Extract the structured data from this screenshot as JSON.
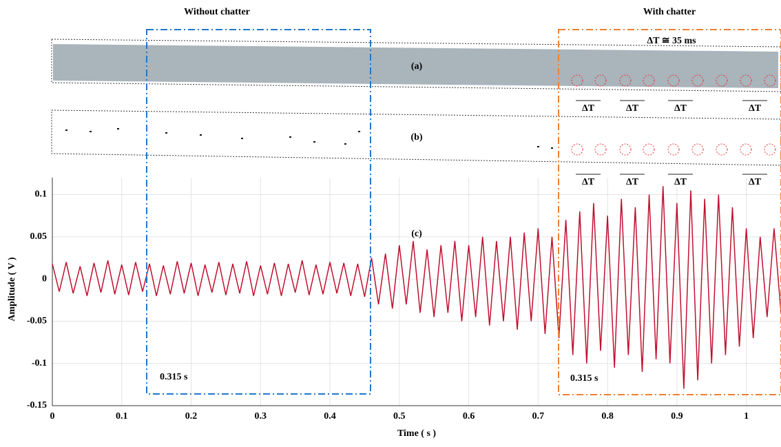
{
  "chart_data": {
    "type": "line",
    "xlabel": "Time ( s )",
    "ylabel": "Amplitude ( V )",
    "xlim": [
      0,
      1.05
    ],
    "xticks": [
      0,
      0.1,
      0.2,
      0.3,
      0.4,
      0.5,
      0.6,
      0.7,
      0.8,
      0.9,
      1
    ],
    "ylim": [
      -0.15,
      0.12
    ],
    "yticks": [
      -0.15,
      -0.1,
      -0.05,
      0,
      0.05,
      0.1
    ],
    "grid": true,
    "x": [
      0,
      0.01,
      0.02,
      0.03,
      0.04,
      0.05,
      0.06,
      0.07,
      0.08,
      0.09,
      0.1,
      0.11,
      0.12,
      0.13,
      0.14,
      0.15,
      0.16,
      0.17,
      0.18,
      0.19,
      0.2,
      0.21,
      0.22,
      0.23,
      0.24,
      0.25,
      0.26,
      0.27,
      0.28,
      0.29,
      0.3,
      0.31,
      0.32,
      0.33,
      0.34,
      0.35,
      0.36,
      0.37,
      0.38,
      0.39,
      0.4,
      0.41,
      0.42,
      0.43,
      0.44,
      0.45,
      0.46,
      0.47,
      0.48,
      0.49,
      0.5,
      0.51,
      0.52,
      0.53,
      0.54,
      0.55,
      0.56,
      0.57,
      0.58,
      0.59,
      0.6,
      0.61,
      0.62,
      0.63,
      0.64,
      0.65,
      0.66,
      0.67,
      0.68,
      0.69,
      0.7,
      0.71,
      0.72,
      0.73,
      0.74,
      0.75,
      0.76,
      0.77,
      0.78,
      0.79,
      0.8,
      0.81,
      0.82,
      0.83,
      0.84,
      0.85,
      0.86,
      0.87,
      0.88,
      0.89,
      0.9,
      0.91,
      0.92,
      0.93,
      0.94,
      0.95,
      0.96,
      0.97,
      0.98,
      0.99,
      1,
      1.01,
      1.02,
      1.03,
      1.04,
      1.05
    ],
    "series": [
      {
        "color": "#c0102e",
        "values": [
          0.018,
          -0.015,
          0.02,
          -0.017,
          0.015,
          -0.02,
          0.019,
          -0.016,
          0.022,
          -0.018,
          0.017,
          -0.019,
          0.02,
          -0.015,
          0.018,
          -0.02,
          0.016,
          -0.018,
          0.021,
          -0.017,
          0.019,
          -0.02,
          0.017,
          -0.016,
          0.02,
          -0.019,
          0.018,
          -0.017,
          0.021,
          -0.02,
          0.016,
          -0.018,
          0.019,
          -0.02,
          0.018,
          -0.016,
          0.022,
          -0.019,
          0.017,
          -0.018,
          0.02,
          -0.017,
          0.019,
          -0.02,
          0.018,
          -0.021,
          0.025,
          -0.03,
          0.03,
          -0.035,
          0.04,
          -0.03,
          0.045,
          -0.04,
          0.035,
          -0.045,
          0.04,
          -0.04,
          0.045,
          -0.05,
          0.04,
          -0.045,
          0.05,
          -0.055,
          0.045,
          -0.05,
          0.05,
          -0.06,
          0.055,
          -0.05,
          0.06,
          -0.065,
          0.05,
          -0.07,
          0.07,
          -0.09,
          0.08,
          -0.1,
          0.09,
          -0.085,
          0.075,
          -0.105,
          0.095,
          -0.09,
          0.085,
          -0.11,
          0.1,
          -0.095,
          0.11,
          -0.1,
          0.09,
          -0.13,
          0.105,
          -0.12,
          0.095,
          -0.1,
          0.1,
          -0.09,
          0.085,
          -0.08,
          0.06,
          -0.07,
          0.05,
          -0.045,
          0.06,
          -0.04
        ]
      }
    ],
    "annotations": {
      "without": "Without chatter",
      "with": "With chatter",
      "period": "ΔT ≅ 35 ms",
      "a": "(a)",
      "b": "(b)",
      "c": "(c)",
      "window_left": "0.315 s",
      "window_right": "0.315 s",
      "delta_t": [
        "ΔT",
        "ΔT",
        "ΔT",
        "ΔT",
        "ΔT",
        "ΔT",
        "ΔT",
        "ΔT"
      ]
    }
  }
}
